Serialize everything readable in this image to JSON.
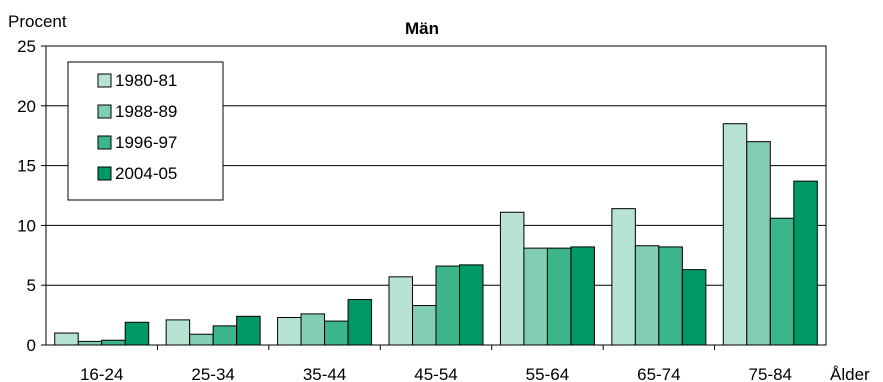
{
  "chart_data": {
    "type": "bar",
    "title": "Män",
    "ylabel": "Procent",
    "xlabel": "Ålder",
    "ylim": [
      0,
      25
    ],
    "yticks": [
      0,
      5,
      10,
      15,
      20,
      25
    ],
    "grid": "horizontal",
    "legend_position": "top-left",
    "categories": [
      "16-24",
      "25-34",
      "35-44",
      "45-54",
      "55-64",
      "65-74",
      "75-84"
    ],
    "series": [
      {
        "name": "1980-81",
        "color": "#b7e3d2",
        "values": [
          1.0,
          2.1,
          2.3,
          5.7,
          11.1,
          11.4,
          18.5
        ]
      },
      {
        "name": "1988-89",
        "color": "#82ceb4",
        "values": [
          0.3,
          0.9,
          2.6,
          3.3,
          8.1,
          8.3,
          17.0
        ]
      },
      {
        "name": "1996-97",
        "color": "#3db58a",
        "values": [
          0.4,
          1.6,
          2.0,
          6.6,
          8.1,
          8.2,
          10.6
        ]
      },
      {
        "name": "2004-05",
        "color": "#009966",
        "values": [
          1.9,
          2.4,
          3.8,
          6.7,
          8.2,
          6.3,
          13.7
        ]
      }
    ]
  }
}
